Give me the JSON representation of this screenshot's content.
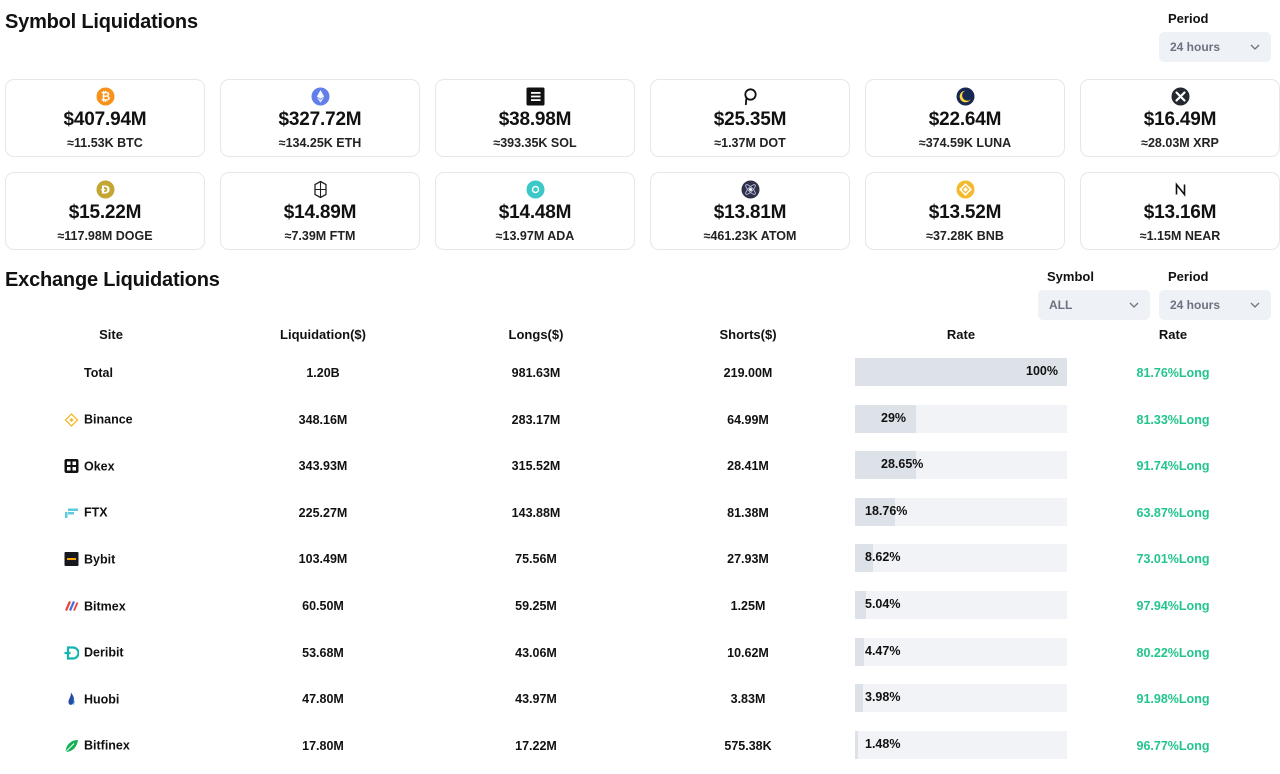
{
  "symbol_section": {
    "title": "Symbol Liquidations",
    "period_label": "Period",
    "period_value": "24 hours"
  },
  "cards": [
    {
      "value": "$407.94M",
      "amount": "≈11.53K BTC",
      "icon": "bitcoin-icon"
    },
    {
      "value": "$327.72M",
      "amount": "≈134.25K ETH",
      "icon": "ethereum-icon"
    },
    {
      "value": "$38.98M",
      "amount": "≈393.35K SOL",
      "icon": "solana-icon"
    },
    {
      "value": "$25.35M",
      "amount": "≈1.37M DOT",
      "icon": "polkadot-icon"
    },
    {
      "value": "$22.64M",
      "amount": "≈374.59K LUNA",
      "icon": "terra-luna-icon"
    },
    {
      "value": "$16.49M",
      "amount": "≈28.03M XRP",
      "icon": "xrp-icon"
    },
    {
      "value": "$15.22M",
      "amount": "≈117.98M DOGE",
      "icon": "dogecoin-icon"
    },
    {
      "value": "$14.89M",
      "amount": "≈7.39M FTM",
      "icon": "fantom-icon"
    },
    {
      "value": "$14.48M",
      "amount": "≈13.97M ADA",
      "icon": "cardano-icon"
    },
    {
      "value": "$13.81M",
      "amount": "≈461.23K ATOM",
      "icon": "cosmos-icon"
    },
    {
      "value": "$13.52M",
      "amount": "≈37.28K BNB",
      "icon": "bnb-icon"
    },
    {
      "value": "$13.16M",
      "amount": "≈1.15M NEAR",
      "icon": "near-icon"
    }
  ],
  "exchange_section": {
    "title": "Exchange Liquidations",
    "symbol_label": "Symbol",
    "symbol_value": "ALL",
    "period_label": "Period",
    "period_value": "24 hours"
  },
  "table": {
    "headers": [
      "Site",
      "Liquidation($)",
      "Longs($)",
      "Shorts($)",
      "Rate",
      "Rate"
    ],
    "rows": [
      {
        "site": "Total",
        "icon": "",
        "liquidation": "1.20B",
        "longs": "981.63M",
        "shorts": "219.00M",
        "share_label": "100%",
        "share": 100,
        "rate": "81.76%Long"
      },
      {
        "site": "Binance",
        "icon": "binance-icon",
        "liquidation": "348.16M",
        "longs": "283.17M",
        "shorts": "64.99M",
        "share_label": "29%",
        "share": 29,
        "rate": "81.33%Long"
      },
      {
        "site": "Okex",
        "icon": "okex-icon",
        "liquidation": "343.93M",
        "longs": "315.52M",
        "shorts": "28.41M",
        "share_label": "28.65%",
        "share": 28.65,
        "rate": "91.74%Long"
      },
      {
        "site": "FTX",
        "icon": "ftx-icon",
        "liquidation": "225.27M",
        "longs": "143.88M",
        "shorts": "81.38M",
        "share_label": "18.76%",
        "share": 18.76,
        "rate": "63.87%Long"
      },
      {
        "site": "Bybit",
        "icon": "bybit-icon",
        "liquidation": "103.49M",
        "longs": "75.56M",
        "shorts": "27.93M",
        "share_label": "8.62%",
        "share": 8.62,
        "rate": "73.01%Long"
      },
      {
        "site": "Bitmex",
        "icon": "bitmex-icon",
        "liquidation": "60.50M",
        "longs": "59.25M",
        "shorts": "1.25M",
        "share_label": "5.04%",
        "share": 5.04,
        "rate": "97.94%Long"
      },
      {
        "site": "Deribit",
        "icon": "deribit-icon",
        "liquidation": "53.68M",
        "longs": "43.06M",
        "shorts": "10.62M",
        "share_label": "4.47%",
        "share": 4.47,
        "rate": "80.22%Long"
      },
      {
        "site": "Huobi",
        "icon": "huobi-icon",
        "liquidation": "47.80M",
        "longs": "43.97M",
        "shorts": "3.83M",
        "share_label": "3.98%",
        "share": 3.98,
        "rate": "91.98%Long"
      },
      {
        "site": "Bitfinex",
        "icon": "bitfinex-icon",
        "liquidation": "17.80M",
        "longs": "17.22M",
        "shorts": "575.38K",
        "share_label": "1.48%",
        "share": 1.48,
        "rate": "96.77%Long"
      }
    ]
  },
  "colors": {
    "long_green": "#22c58b",
    "bar_track": "#f1f3f6",
    "bar_fill": "#dde1e8",
    "select_bg": "#eef1f5"
  }
}
